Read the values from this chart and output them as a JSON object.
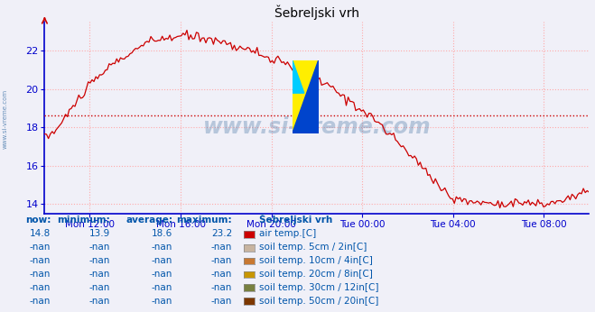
{
  "title": "Šebreljski vrh",
  "title_color": "#000000",
  "bg_color": "#f0f0f8",
  "plot_bg_color": "#f0f0f8",
  "line_color": "#cc0000",
  "avg_line_color": "#cc0000",
  "avg_value": 18.6,
  "ylim": [
    13.5,
    23.5
  ],
  "yticks": [
    14,
    16,
    18,
    20,
    22
  ],
  "grid_color": "#ffaaaa",
  "axis_color": "#0000cc",
  "text_color": "#0055aa",
  "watermark": "www.si-vreme.com",
  "watermark_color": "#336699",
  "watermark_alpha": 0.3,
  "xtick_labels": [
    "Mon 12:00",
    "Mon 16:00",
    "Mon 20:00",
    "Tue 00:00",
    "Tue 04:00",
    "Tue 08:00"
  ],
  "xtick_positions_norm": [
    0.083,
    0.25,
    0.417,
    0.583,
    0.75,
    0.917
  ],
  "now_label": "now:",
  "min_label": "minimum:",
  "avg_label": "average:",
  "max_label": "maximum:",
  "station_label": "Šebreljski vrh",
  "rows": [
    {
      "now": "14.8",
      "min": "13.9",
      "avg": "18.6",
      "max": "23.2",
      "color": "#cc0000",
      "desc": "air temp.[C]"
    },
    {
      "now": "-nan",
      "min": "-nan",
      "avg": "-nan",
      "max": "-nan",
      "color": "#c8b4a0",
      "desc": "soil temp. 5cm / 2in[C]"
    },
    {
      "now": "-nan",
      "min": "-nan",
      "avg": "-nan",
      "max": "-nan",
      "color": "#c87832",
      "desc": "soil temp. 10cm / 4in[C]"
    },
    {
      "now": "-nan",
      "min": "-nan",
      "avg": "-nan",
      "max": "-nan",
      "color": "#c89600",
      "desc": "soil temp. 20cm / 8in[C]"
    },
    {
      "now": "-nan",
      "min": "-nan",
      "avg": "-nan",
      "max": "-nan",
      "color": "#788040",
      "desc": "soil temp. 30cm / 12in[C]"
    },
    {
      "now": "-nan",
      "min": "-nan",
      "avg": "-nan",
      "max": "-nan",
      "color": "#7d3800",
      "desc": "soil temp. 50cm / 20in[C]"
    }
  ],
  "sidebar_text": "www.si-vreme.com",
  "sidebar_color": "#4477aa",
  "logo_yellow": "#ffee00",
  "logo_cyan": "#00ccff",
  "logo_blue": "#0044cc"
}
